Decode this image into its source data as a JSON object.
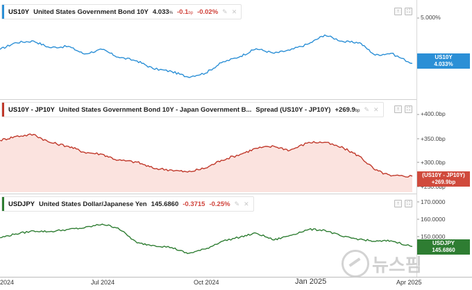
{
  "chart_data": [
    {
      "type": "line",
      "symbol": "US10Y",
      "name": "United States Government Bond 10Y",
      "value": "4.033",
      "value_unit": "%",
      "change": "-0.1",
      "change_unit": "bp",
      "change_pct": "-0.02%",
      "badge_line1": "US10Y",
      "badge_line2": "4.033%",
      "color": "#2b8fd6",
      "y_ticks": [
        "5.000%"
      ],
      "ylim": [
        3.55,
        5.15
      ],
      "x": [
        "2024-04-01",
        "2024-04-15",
        "2024-05-01",
        "2024-05-15",
        "2024-06-01",
        "2024-06-15",
        "2024-07-01",
        "2024-07-15",
        "2024-08-01",
        "2024-08-15",
        "2024-09-01",
        "2024-09-15",
        "2024-10-01",
        "2024-10-15",
        "2024-11-01",
        "2024-11-15",
        "2024-12-01",
        "2024-12-15",
        "2025-01-01",
        "2025-01-15",
        "2025-02-01",
        "2025-02-15",
        "2025-03-01",
        "2025-03-15",
        "2025-04-03"
      ],
      "values": [
        4.4,
        4.58,
        4.62,
        4.45,
        4.48,
        4.28,
        4.4,
        4.2,
        4.1,
        3.9,
        3.82,
        3.68,
        3.78,
        4.05,
        4.22,
        4.42,
        4.3,
        4.38,
        4.55,
        4.78,
        4.6,
        4.58,
        4.25,
        4.3,
        4.033
      ]
    },
    {
      "type": "area",
      "symbol": "US10Y - JP10Y",
      "name": "United States Government Bond 10Y - Japan Government B...",
      "subtitle": "Spread (US10Y - JP10Y)",
      "value": "+269.9",
      "value_unit": "bp",
      "badge_line1": "(US10Y - JP10Y)",
      "badge_line2": "+269.9bp",
      "color": "#c0392b",
      "y_ticks": [
        "+400.0bp",
        "+350.0bp",
        "+300.0bp",
        "+250.0bp"
      ],
      "ylim": [
        245,
        420
      ],
      "x": [
        "2024-04-01",
        "2024-04-15",
        "2024-05-01",
        "2024-05-15",
        "2024-06-01",
        "2024-06-15",
        "2024-07-01",
        "2024-07-15",
        "2024-08-01",
        "2024-08-15",
        "2024-09-01",
        "2024-09-15",
        "2024-10-01",
        "2024-10-15",
        "2024-11-01",
        "2024-11-15",
        "2024-12-01",
        "2024-12-15",
        "2025-01-01",
        "2025-01-15",
        "2025-02-01",
        "2025-02-15",
        "2025-03-01",
        "2025-03-15",
        "2025-04-03"
      ],
      "values": [
        360,
        370,
        375,
        355,
        345,
        330,
        325,
        310,
        305,
        290,
        285,
        280,
        290,
        310,
        325,
        340,
        345,
        335,
        355,
        355,
        340,
        320,
        285,
        270,
        269.9
      ]
    },
    {
      "type": "line",
      "symbol": "USDJPY",
      "name": "United States Dollar/Japanese Yen",
      "value": "145.6860",
      "change": "-0.3715",
      "change_pct": "-0.25%",
      "badge_line1": "USDJPY",
      "badge_line2": "145.6860",
      "color": "#2e7d32",
      "y_ticks": [
        "170.0000",
        "160.0000",
        "150.0000"
      ],
      "ylim": [
        138,
        172
      ],
      "x": [
        "2024-04-01",
        "2024-04-15",
        "2024-05-01",
        "2024-05-15",
        "2024-06-01",
        "2024-06-15",
        "2024-07-01",
        "2024-07-15",
        "2024-08-01",
        "2024-08-15",
        "2024-09-01",
        "2024-09-15",
        "2024-10-01",
        "2024-10-15",
        "2024-11-01",
        "2024-11-15",
        "2024-12-01",
        "2024-12-15",
        "2025-01-01",
        "2025-01-15",
        "2025-02-01",
        "2025-02-15",
        "2025-03-01",
        "2025-03-15",
        "2025-04-03"
      ],
      "values": [
        151.5,
        154.0,
        156.0,
        155.5,
        157.0,
        158.0,
        160.5,
        158.0,
        148.0,
        146.5,
        145.0,
        141.0,
        144.0,
        149.0,
        152.0,
        154.5,
        150.0,
        153.0,
        157.0,
        156.5,
        152.0,
        150.5,
        149.0,
        149.5,
        145.686
      ]
    }
  ],
  "x_axis": {
    "labels": [
      "2024",
      "Jul 2024",
      "Oct 2024",
      "Jan 2025",
      "Apr 2025"
    ],
    "label_dates": [
      "2024-04-01",
      "2024-07-01",
      "2024-10-01",
      "2025-01-01",
      "2025-04-03"
    ]
  },
  "watermark": "뉴스핌",
  "tool_glyphs": [
    "↑",
    "⛶"
  ]
}
